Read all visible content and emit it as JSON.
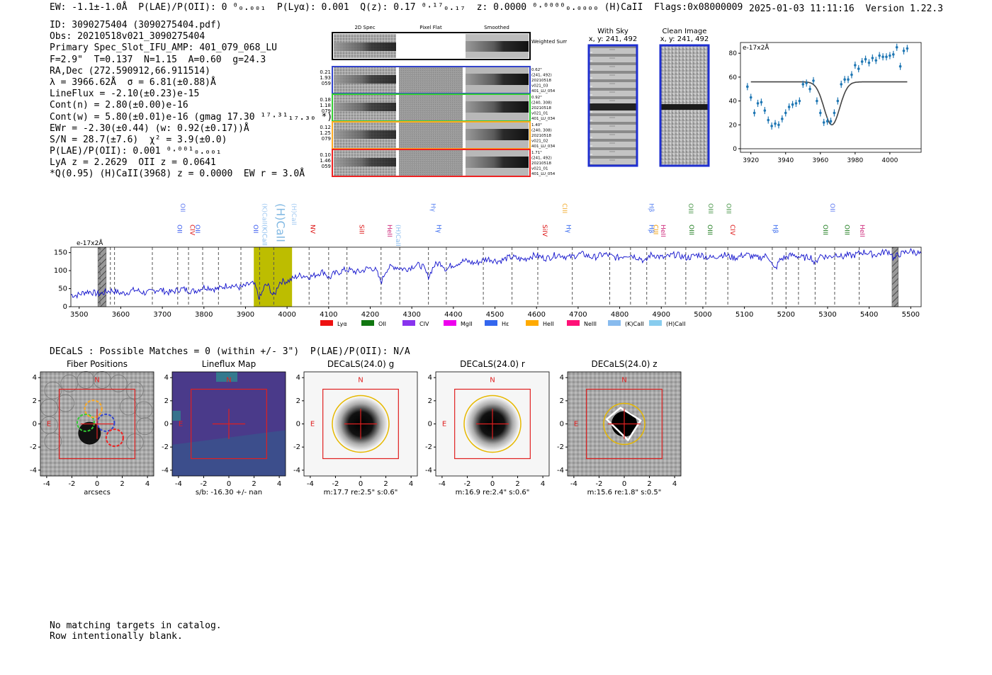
{
  "header": {
    "line": "EW: -1.1±-1.0Å  P(LAE)/P(OII): 0 ⁰₀.₀₀₁  P(Lyα): 0.001  Q(z): 0.17 ⁰·¹⁷₀.₁₇  z: 0.0000 ⁰·⁰⁰⁰⁰₀.₀₀₀₀ (H)CaII  Flags:0x08000009",
    "timestamp": "2025-01-03 11:11:16  Version 1.22.3"
  },
  "info": [
    "ID: 3090275404 (3090275404.pdf)",
    "Obs: 20210518v021_3090275404",
    "Primary Spec_Slot_IFU_AMP: 401_079_068_LU",
    "F=2.9\"  T=0.137  N=1.15  A=0.60  g=24.3",
    "RA,Dec (272.590912,66.911514)",
    "λ = 3966.62Å  σ = 6.81(±0.88)Å",
    "LineFlux = -2.10(±0.23)e-15",
    "Cont(n) = 2.80(±0.00)e-16",
    "Cont(w) = 5.80(±0.01)e-16 (gmag 17.30 ¹⁷·³¹₁₇.₃₀ *)",
    "EWr = -2.30(±0.44) (w: 0.92(±0.17))Å",
    "S/N = 28.7(±7.6)  χ² = 3.9(±0.0)",
    "P(LAE)/P(OII): 0.001 ⁰·⁰⁰¹₀.₀₀₁",
    "LyA z = 2.2629  OII z = 0.0641",
    "*Q(0.95) (H)CaII(3968) z = 0.0000  EW r = 3.0Å"
  ],
  "cutouts": {
    "col_titles": [
      "2D Spec",
      "Pixel Flat",
      "Smoothed"
    ],
    "weighted_label": "Weighted Sum",
    "rows": [
      {
        "color": "#3344cc",
        "left": [
          "0.21",
          "1.93",
          "059"
        ],
        "right": [
          "0.62\"",
          "(241, 492)",
          "20210518",
          "v021_03",
          "401_LU_054"
        ]
      },
      {
        "color": "#33cc33",
        "left": [
          "0.18",
          "1.18",
          "079"
        ],
        "right": [
          "0.92\"",
          "(240, 308)",
          "20210518",
          "v021_01",
          "401_LU_034"
        ]
      },
      {
        "color": "#ffaa22",
        "left": [
          "0.12",
          "1.25",
          "079"
        ],
        "right": [
          "1.40\"",
          "(240, 308)",
          "20210518",
          "v021_02",
          "401_LU_034"
        ]
      },
      {
        "color": "#ee2222",
        "left": [
          "0.10",
          "1.46",
          "059"
        ],
        "right": [
          "1.71\"",
          "(241, 492)",
          "20210518",
          "v021_01",
          "401_LU_054"
        ]
      }
    ]
  },
  "sky_panels": {
    "with_sky_title": "With Sky",
    "with_sky_coords": "x, y: 241, 492",
    "clean_title": "Clean Image",
    "clean_coords": "x, y: 241, 492"
  },
  "chart_data": [
    {
      "type": "line",
      "name": "zoom-spectrum",
      "ylabel_unit": "e-17x2Å",
      "xlim": [
        3914,
        4018
      ],
      "ylim": [
        -3,
        89
      ],
      "xticks": [
        3920,
        3940,
        3960,
        3980,
        4000
      ],
      "yticks": [
        0,
        20,
        40,
        60,
        80
      ],
      "data_points": {
        "x": [
          3918,
          3920,
          3922,
          3924,
          3926,
          3928,
          3930,
          3932,
          3934,
          3936,
          3938,
          3940,
          3942,
          3944,
          3946,
          3948,
          3950,
          3952,
          3954,
          3956,
          3958,
          3960,
          3962,
          3964,
          3966,
          3968,
          3970,
          3972,
          3974,
          3976,
          3978,
          3980,
          3982,
          3984,
          3986,
          3988,
          3990,
          3992,
          3994,
          3996,
          3998,
          4000,
          4002,
          4004,
          4006,
          4008,
          4010
        ],
        "y": [
          52,
          43,
          30,
          38,
          39,
          32,
          24,
          19,
          21,
          20,
          25,
          30,
          35,
          37,
          38,
          40,
          54,
          55,
          50,
          57,
          40,
          30,
          22,
          23,
          23,
          30,
          40,
          54,
          58,
          58,
          62,
          70,
          67,
          73,
          75,
          72,
          76,
          74,
          78,
          77,
          77,
          78,
          79,
          85,
          69,
          82,
          84
        ],
        "err": [
          3,
          3,
          3,
          3,
          3,
          3,
          3,
          3,
          3,
          3,
          3,
          3,
          3,
          3,
          3,
          3,
          3,
          3,
          3,
          3,
          3,
          3,
          3,
          3,
          3,
          3,
          3,
          3,
          3,
          3,
          3,
          3,
          3,
          3,
          3,
          3,
          3,
          3,
          3,
          3,
          3,
          3,
          3,
          3,
          3,
          3,
          3
        ]
      },
      "model": {
        "continuum": 56,
        "center": 3966.6,
        "sigma": 4.5,
        "depth": 36,
        "x_range": [
          3920,
          4010
        ]
      },
      "zero_line": 0
    },
    {
      "type": "line",
      "name": "full-spectrum",
      "ylabel_unit": "e-17x2Å",
      "xlim": [
        3480,
        5525
      ],
      "ylim": [
        0,
        165
      ],
      "xticks": [
        3500,
        3600,
        3700,
        3800,
        3900,
        4000,
        4100,
        4200,
        4300,
        4400,
        4500,
        4600,
        4700,
        4800,
        4900,
        5000,
        5100,
        5200,
        5300,
        5400,
        5500
      ],
      "yticks": [
        0,
        50,
        100,
        150
      ],
      "continuum_anchors": {
        "x": [
          3480,
          3550,
          3650,
          3750,
          3850,
          3920,
          3980,
          4040,
          4100,
          4200,
          4300,
          4400,
          4500,
          4600,
          4700,
          4800,
          4900,
          5000,
          5100,
          5200,
          5300,
          5400,
          5500,
          5525
        ],
        "y": [
          35,
          40,
          42,
          45,
          55,
          60,
          70,
          85,
          95,
          103,
          110,
          120,
          130,
          138,
          142,
          140,
          140,
          140,
          140,
          138,
          142,
          148,
          150,
          150
        ]
      },
      "absorption_features": [
        {
          "x": 3934,
          "depth": 35,
          "width": 6
        },
        {
          "x": 3968,
          "depth": 40,
          "width": 7
        },
        {
          "x": 4101,
          "depth": 15,
          "width": 5
        },
        {
          "x": 4226,
          "depth": 30,
          "width": 6
        },
        {
          "x": 4340,
          "depth": 25,
          "width": 6
        },
        {
          "x": 4383,
          "depth": 15,
          "width": 5
        },
        {
          "x": 4861,
          "depth": 15,
          "width": 5
        },
        {
          "x": 5172,
          "depth": 35,
          "width": 7
        },
        {
          "x": 5270,
          "depth": 25,
          "width": 5
        },
        {
          "x": 5335,
          "depth": 10,
          "width": 5
        },
        {
          "x": 5460,
          "depth": 15,
          "width": 4
        }
      ],
      "highlight_band": [
        3920,
        4012
      ],
      "hatched_regions": [
        [
          3545,
          3565
        ],
        [
          5455,
          5470
        ]
      ],
      "marker_lines": [
        3550,
        3575,
        3585,
        3676,
        3737,
        3763,
        3797,
        3835,
        3889,
        3934,
        3968,
        4053,
        4100,
        4144,
        4226,
        4271,
        4340,
        4383,
        4472,
        4541,
        4603,
        4686,
        4776,
        4826,
        4865,
        4910,
        4959,
        5007,
        5060,
        5167,
        5200,
        5230,
        5270,
        5317,
        5376
      ],
      "line_labels_top": [
        {
          "x": 3737,
          "text": "OII"
        },
        {
          "x": 3934,
          "text": "(K)CaII"
        },
        {
          "x": 3968,
          "text": "(H)CaII"
        },
        {
          "x": 4005,
          "text": "(H)CaII"
        },
        {
          "x": 4340,
          "text": "Hγ"
        },
        {
          "x": 4656,
          "text": "CIII"
        },
        {
          "x": 4865,
          "text": "Hβ"
        },
        {
          "x": 4959,
          "text": "OIII"
        },
        {
          "x": 5007,
          "text": "OIII"
        },
        {
          "x": 5050,
          "text": "OIII"
        },
        {
          "x": 5300,
          "text": "OII"
        }
      ],
      "line_labels_bottom": [
        {
          "x": 3730,
          "text": "OII"
        },
        {
          "x": 3760,
          "text": "CIV"
        },
        {
          "x": 3773,
          "text": "OII"
        },
        {
          "x": 3913,
          "text": "OII"
        },
        {
          "x": 3934,
          "text": "(K)CaII"
        },
        {
          "x": 4050,
          "text": "NV"
        },
        {
          "x": 4168,
          "text": "SiII"
        },
        {
          "x": 4235,
          "text": "HeII"
        },
        {
          "x": 4255,
          "text": "(H)CaII"
        },
        {
          "x": 4353,
          "text": "Hγ"
        },
        {
          "x": 4608,
          "text": "SiIV"
        },
        {
          "x": 4665,
          "text": "Hγ"
        },
        {
          "x": 4865,
          "text": "Hβ"
        },
        {
          "x": 4875,
          "text": "CIII"
        },
        {
          "x": 4893,
          "text": "HeII"
        },
        {
          "x": 4961,
          "text": "OIII"
        },
        {
          "x": 5005,
          "text": "OIII"
        },
        {
          "x": 5060,
          "text": "CIV"
        },
        {
          "x": 5163,
          "text": "Hβ"
        },
        {
          "x": 5283,
          "text": "OIII"
        },
        {
          "x": 5335,
          "text": "OIII"
        },
        {
          "x": 5372,
          "text": "HeII"
        }
      ],
      "legend": [
        {
          "label": "Lyα",
          "color": "#ee1111"
        },
        {
          "label": "OII",
          "color": "#117711"
        },
        {
          "label": "CIV",
          "color": "#8833ee"
        },
        {
          "label": "MgII",
          "color": "#ee00ee"
        },
        {
          "label": "Hε",
          "color": "#3366ee"
        },
        {
          "label": "HeII",
          "color": "#ffaa00"
        },
        {
          "label": "NeIII",
          "color": "#ff1177"
        },
        {
          "label": "(K)CaII",
          "color": "#88bbee"
        },
        {
          "label": "(H)CaII",
          "color": "#88ccee"
        }
      ]
    }
  ],
  "decals_line": "DECaLS : Possible Matches = 0 (within +/- 3\")  P(LAE)/P(OII): N/A",
  "bottom_panels": [
    {
      "title": "Fiber Positions",
      "xlabel": "arcsecs",
      "kind": "fibers",
      "north": "N",
      "east": "E"
    },
    {
      "title": "Lineflux Map",
      "xlabel": "s/b: -16.30 +/- nan",
      "kind": "lineflux",
      "north": "N",
      "east": "E"
    },
    {
      "title": "DECaLS(24.0) g",
      "xlabel": "m:17.7  re:2.5\"  s:0.6\"",
      "kind": "decals",
      "north": "N",
      "east": "E"
    },
    {
      "title": "DECaLS(24.0) r",
      "xlabel": "m:16.9  re:2.4\"  s:0.6\"",
      "kind": "decals",
      "north": "N",
      "east": "E"
    },
    {
      "title": "DECaLS(24.0) z",
      "xlabel": "m:15.6  re:1.8\"  s:0.5\"",
      "kind": "decalsz",
      "north": "N",
      "east": "E"
    }
  ],
  "footer": [
    "No matching targets in catalog.",
    "Row intentionally blank."
  ]
}
